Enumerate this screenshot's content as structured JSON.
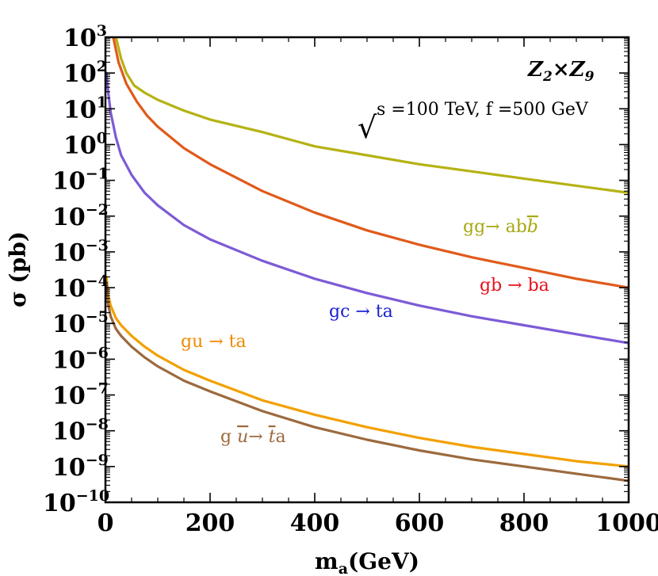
{
  "chart_data": {
    "type": "line",
    "title": "",
    "xlabel": "m",
    "xlabel_sub": "a",
    "xlabel_unit": "(GeV)",
    "ylabel": "σ (pb)",
    "xlim": [
      0,
      1000
    ],
    "ylim_log10": [
      -10,
      3
    ],
    "yscale": "log",
    "grid": false,
    "x_ticks": [
      0,
      200,
      400,
      600,
      800,
      1000
    ],
    "x_tick_labels": [
      "0",
      "200",
      "400",
      "600",
      "800",
      "1000"
    ],
    "y_tick_exponents": [
      3,
      2,
      1,
      0,
      -1,
      -2,
      -3,
      -4,
      -5,
      -6,
      -7,
      -8,
      -9,
      -10
    ],
    "y_tick_base": "10",
    "y_tick_exponent_labels": [
      "3",
      "2",
      "1",
      "0",
      "−1",
      "−2",
      "−3",
      "−4",
      "−5",
      "−6",
      "−7",
      "−8",
      "−9",
      "−10"
    ],
    "model_label": {
      "main": "Z",
      "sub1": "2",
      "times": "×",
      "main2": "Z",
      "sub2": "9"
    },
    "params_label": {
      "root": "√",
      "text": "s =100 TeV, f =500 GeV"
    },
    "series": [
      {
        "name": "gg→ ab b̄",
        "label_parts": [
          "gg→ ab",
          "b"
        ],
        "color": "#b5b214",
        "label_color": "#a8a813",
        "x": [
          20,
          30,
          40,
          55,
          75,
          100,
          150,
          200,
          300,
          400,
          500,
          600,
          700,
          800,
          900,
          1000
        ],
        "log10_y": [
          3.0,
          2.4,
          2.0,
          1.65,
          1.45,
          1.25,
          0.95,
          0.7,
          0.35,
          -0.05,
          -0.3,
          -0.55,
          -0.75,
          -0.95,
          -1.15,
          -1.35
        ]
      },
      {
        "name": "gb → ba",
        "label_parts": [
          "gb → ba"
        ],
        "color": "#e05a1b",
        "label_color": "#e8101e",
        "x": [
          15,
          25,
          40,
          60,
          80,
          100,
          150,
          200,
          300,
          400,
          500,
          600,
          700,
          800,
          900,
          1000
        ],
        "log10_y": [
          3.0,
          2.3,
          1.7,
          1.2,
          0.8,
          0.5,
          -0.1,
          -0.55,
          -1.3,
          -1.9,
          -2.4,
          -2.8,
          -3.15,
          -3.45,
          -3.75,
          -4.0
        ]
      },
      {
        "name": "gc → ta",
        "label_parts": [
          "gc → ta"
        ],
        "color": "#7c5bd6",
        "label_color": "#1a21d0",
        "x": [
          2,
          5,
          10,
          20,
          30,
          50,
          75,
          100,
          150,
          200,
          300,
          400,
          500,
          600,
          700,
          800,
          900,
          1000
        ],
        "log10_y": [
          2.0,
          1.5,
          0.9,
          0.2,
          -0.3,
          -0.85,
          -1.35,
          -1.7,
          -2.25,
          -2.65,
          -3.25,
          -3.75,
          -4.15,
          -4.5,
          -4.8,
          -5.05,
          -5.3,
          -5.55
        ]
      },
      {
        "name": "gu → ta",
        "label_parts": [
          "gu → ta"
        ],
        "color": "#f2a000",
        "label_color": "#f08a00",
        "x": [
          2,
          5,
          10,
          20,
          30,
          50,
          75,
          100,
          150,
          200,
          300,
          400,
          500,
          600,
          700,
          800,
          900,
          1000
        ],
        "log10_y": [
          -3.7,
          -4.2,
          -4.5,
          -4.85,
          -5.05,
          -5.35,
          -5.65,
          -5.9,
          -6.3,
          -6.6,
          -7.15,
          -7.55,
          -7.9,
          -8.2,
          -8.45,
          -8.65,
          -8.85,
          -9.0
        ]
      },
      {
        "name": "g ū → t̄a",
        "label_parts": [
          "g ",
          "u",
          "→ ",
          "t",
          "a"
        ],
        "color": "#9c6a3e",
        "label_color": "#9c6a3e",
        "x": [
          2,
          5,
          10,
          20,
          30,
          50,
          75,
          100,
          150,
          200,
          300,
          400,
          500,
          600,
          700,
          800,
          900,
          1000
        ],
        "log10_y": [
          -3.85,
          -4.45,
          -4.8,
          -5.15,
          -5.35,
          -5.65,
          -5.95,
          -6.2,
          -6.6,
          -6.9,
          -7.45,
          -7.9,
          -8.25,
          -8.55,
          -8.8,
          -9.0,
          -9.2,
          -9.4
        ]
      }
    ]
  }
}
